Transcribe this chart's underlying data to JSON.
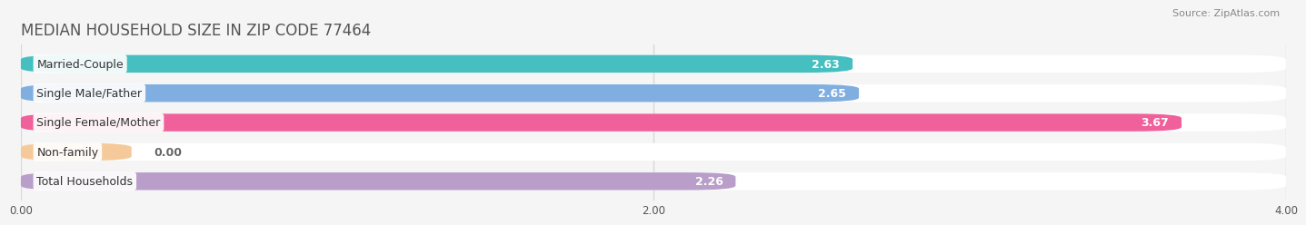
{
  "title": "MEDIAN HOUSEHOLD SIZE IN ZIP CODE 77464",
  "source": "Source: ZipAtlas.com",
  "categories": [
    "Married-Couple",
    "Single Male/Father",
    "Single Female/Mother",
    "Non-family",
    "Total Households"
  ],
  "values": [
    2.63,
    2.65,
    3.67,
    0.0,
    2.26
  ],
  "bar_colors": [
    "#45bfbf",
    "#80aee0",
    "#f0609a",
    "#f5c99a",
    "#b89ec8"
  ],
  "xlim": [
    0,
    4.0
  ],
  "xticks": [
    0.0,
    2.0,
    4.0
  ],
  "xtick_labels": [
    "0.00",
    "2.00",
    "4.00"
  ],
  "bg_color": "#f5f5f5",
  "bar_bg_color": "#e4e4e4",
  "row_bg_color": "#ffffff",
  "title_fontsize": 12,
  "source_fontsize": 8,
  "label_fontsize": 9,
  "value_fontsize": 9
}
